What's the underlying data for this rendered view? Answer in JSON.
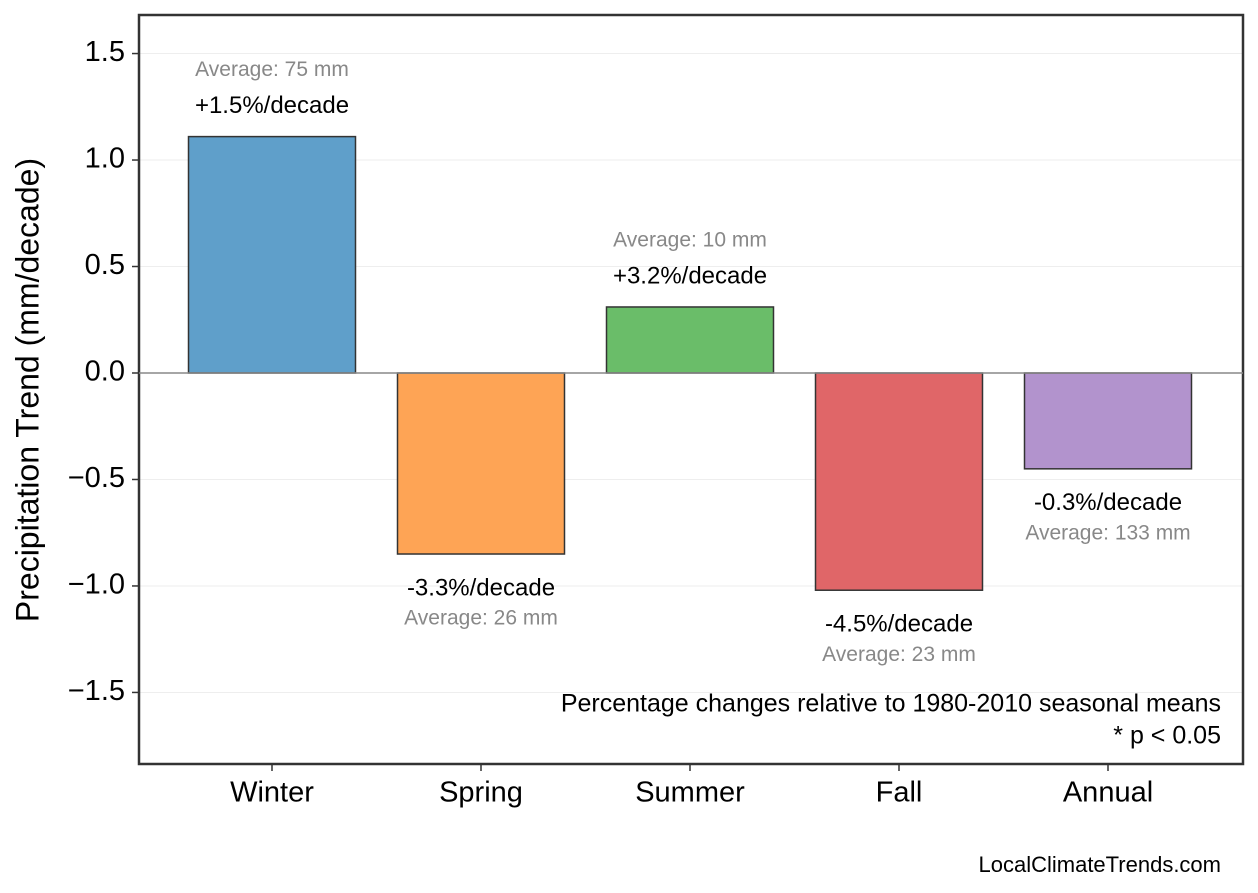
{
  "chart_data": {
    "type": "bar",
    "ylabel": "Precipitation Trend (mm/decade)",
    "categories": [
      "Winter",
      "Spring",
      "Summer",
      "Fall",
      "Annual"
    ],
    "values": [
      1.11,
      -0.85,
      0.31,
      -1.02,
      -0.45
    ],
    "colors": [
      "#5f9fca",
      "#fea455",
      "#6abd69",
      "#e06668",
      "#b293cd"
    ],
    "trend_labels": [
      "+1.5%/decade",
      "-3.3%/decade",
      "+3.2%/decade",
      "-4.5%/decade",
      "-0.3%/decade"
    ],
    "average_labels": [
      "Average: 75 mm",
      "Average: 26 mm",
      "Average: 10 mm",
      "Average: 23 mm",
      "Average: 133 mm"
    ],
    "ylim": [
      -1.836,
      1.681
    ],
    "yticks": [
      {
        "value": -1.5,
        "label": "−1.5"
      },
      {
        "value": -1.0,
        "label": "−1.0"
      },
      {
        "value": -0.5,
        "label": "−0.5"
      },
      {
        "value": 0,
        "label": "0.0"
      },
      0.5,
      {
        "value": 1.0,
        "label": "1.0"
      },
      1.5
    ],
    "grid": true,
    "notes": [
      "Percentage changes relative to 1980-2010 seasonal means",
      "* p < 0.05"
    ],
    "source": "LocalClimateTrends.com"
  }
}
